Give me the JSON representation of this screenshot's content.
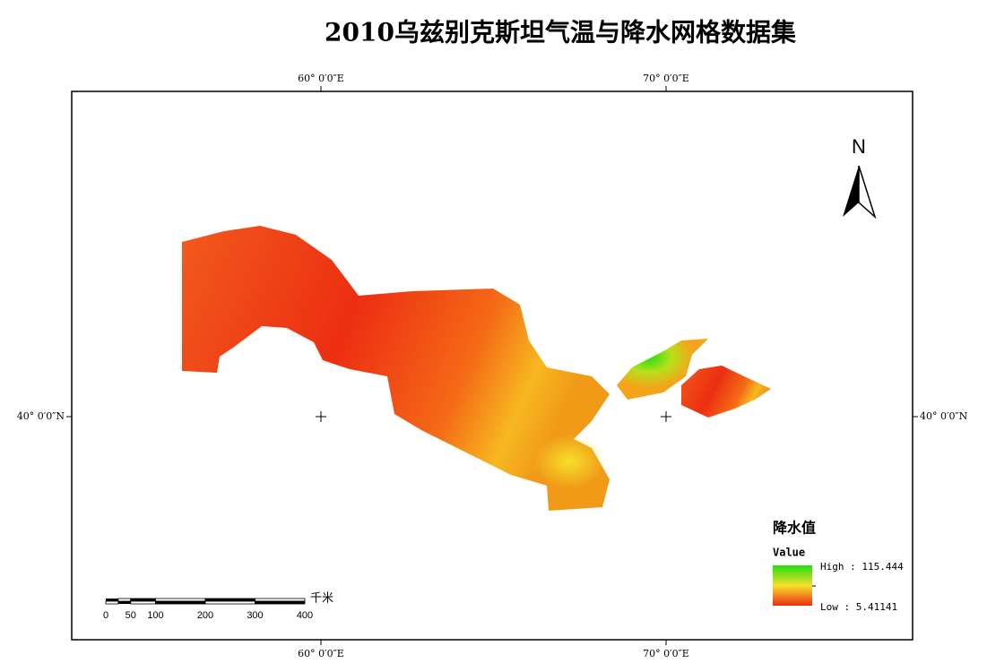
{
  "title": "2010乌兹别克斯坦气温与降水网格数据集",
  "graticule": {
    "top": [
      "60° 0′0″E",
      "70° 0′0″E"
    ],
    "bottom": [
      "60° 0′0″E",
      "70° 0′0″E"
    ],
    "left": [
      "40° 0′0″N"
    ],
    "right": [
      "40° 0′0″N"
    ]
  },
  "north_arrow": "N",
  "legend": {
    "title": "降水值",
    "field": "Value",
    "high": "High : 115.444",
    "low": "Low : 5.41141"
  },
  "scale_bar": {
    "labels": [
      0,
      50,
      100,
      200,
      300,
      400
    ],
    "unit": "千米"
  }
}
